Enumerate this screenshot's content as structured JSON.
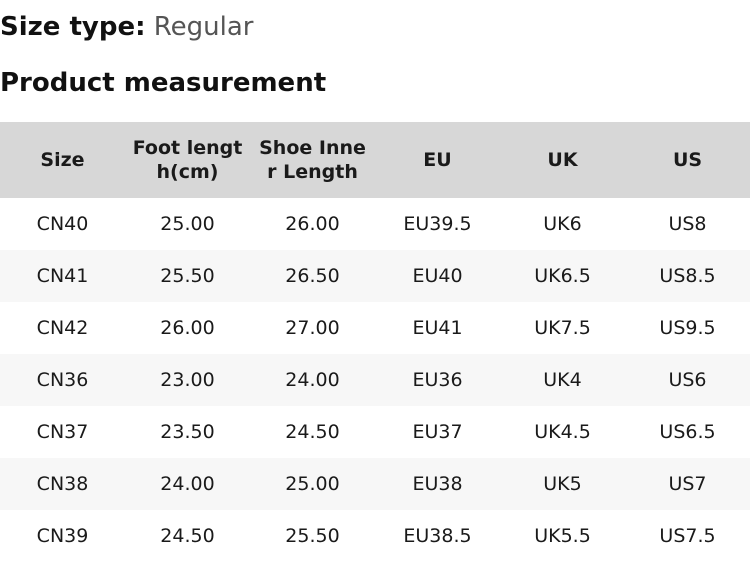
{
  "size_type": {
    "label": "Size type:",
    "value": "Regular"
  },
  "section_title": "Product measurement",
  "table": {
    "headers": [
      "Size",
      "Foot length(cm)",
      "Shoe Inner Length",
      "EU",
      "UK",
      "US"
    ],
    "rows": [
      [
        "CN40",
        "25.00",
        "26.00",
        "EU39.5",
        "UK6",
        "US8"
      ],
      [
        "CN41",
        "25.50",
        "26.50",
        "EU40",
        "UK6.5",
        "US8.5"
      ],
      [
        "CN42",
        "26.00",
        "27.00",
        "EU41",
        "UK7.5",
        "US9.5"
      ],
      [
        "CN36",
        "23.00",
        "24.00",
        "EU36",
        "UK4",
        "US6"
      ],
      [
        "CN37",
        "23.50",
        "24.50",
        "EU37",
        "UK4.5",
        "US6.5"
      ],
      [
        "CN38",
        "24.00",
        "25.00",
        "EU38",
        "UK5",
        "US7"
      ],
      [
        "CN39",
        "24.50",
        "25.50",
        "EU38.5",
        "UK5.5",
        "US7.5"
      ]
    ]
  }
}
